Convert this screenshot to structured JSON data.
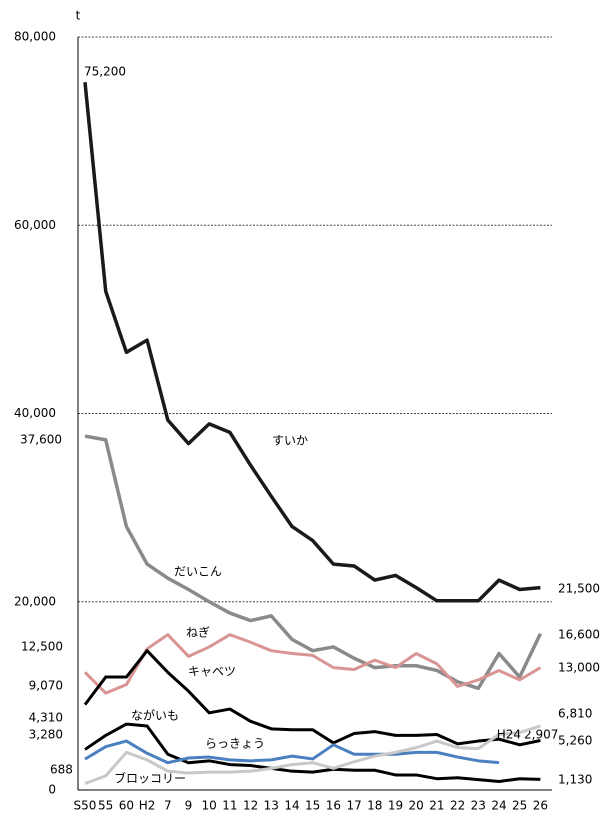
{
  "chart_data": {
    "type": "line",
    "y_label": "t",
    "categories": [
      "S50",
      "55",
      "60",
      "H2",
      "7",
      "9",
      "10",
      "11",
      "12",
      "13",
      "14",
      "15",
      "16",
      "17",
      "18",
      "19",
      "20",
      "21",
      "22",
      "23",
      "24",
      "25",
      "26"
    ],
    "ylim": [
      0,
      80000
    ],
    "yticks": [
      0,
      {
        "value": 20000,
        "label": "20,000"
      },
      {
        "value": 40000,
        "label": "40,000"
      },
      {
        "value": 60000,
        "label": "60,000"
      },
      {
        "value": 80000,
        "label": "80,000"
      }
    ],
    "grid": true,
    "annotations": [
      "H24"
    ],
    "series": [
      {
        "name": "すいか",
        "color": "#1a1a1a",
        "values": [
          75200,
          53000,
          46500,
          47800,
          39300,
          36800,
          38900,
          38000,
          34500,
          31200,
          28000,
          26500,
          24000,
          23800,
          22300,
          22800,
          21500,
          20100,
          20100,
          20100,
          22300,
          21300,
          21500
        ],
        "value_labels": [
          "75,200",
          null,
          null,
          null,
          null,
          null,
          null,
          null,
          null,
          null,
          null,
          null,
          null,
          null,
          null,
          null,
          null,
          null,
          null,
          null,
          null,
          null,
          "21,500"
        ]
      },
      {
        "name": "だいこん",
        "color": "#8a8a8a",
        "values": [
          37600,
          37200,
          28000,
          24000,
          22500,
          21300,
          20000,
          18800,
          18000,
          18500,
          16000,
          14800,
          15200,
          14000,
          13000,
          13200,
          13200,
          12700,
          11500,
          10800,
          14500,
          12000,
          16600
        ],
        "value_labels": [
          "37,600",
          null,
          null,
          null,
          null,
          null,
          null,
          null,
          null,
          null,
          null,
          null,
          null,
          null,
          null,
          null,
          null,
          null,
          null,
          null,
          null,
          null,
          "16,600"
        ]
      },
      {
        "name": "ねぎ",
        "color": "#d99494",
        "values": [
          12500,
          10300,
          11200,
          15000,
          16500,
          14200,
          15200,
          16500,
          15700,
          14800,
          14500,
          14300,
          13000,
          12800,
          13800,
          13000,
          14500,
          13400,
          11000,
          11700,
          12700,
          11700,
          13000
        ],
        "value_labels": [
          "12,500",
          null,
          null,
          null,
          null,
          null,
          null,
          null,
          null,
          null,
          null,
          null,
          null,
          null,
          null,
          null,
          null,
          null,
          null,
          null,
          null,
          null,
          "13,000"
        ]
      },
      {
        "name": "キャベツ",
        "color": "#000000",
        "values": [
          9070,
          12000,
          12000,
          14800,
          12500,
          10500,
          8200,
          8600,
          7300,
          6500,
          6400,
          6400,
          5000,
          6000,
          6200,
          5800,
          5800,
          5900,
          4900,
          5200,
          5400,
          4800,
          5260
        ],
        "value_labels": [
          "9,070",
          null,
          null,
          null,
          null,
          null,
          null,
          null,
          null,
          null,
          null,
          null,
          null,
          null,
          null,
          null,
          null,
          null,
          null,
          null,
          null,
          null,
          "5,260"
        ]
      },
      {
        "name": "ながいも",
        "color": "#000000",
        "values": [
          4310,
          5800,
          7000,
          6800,
          3800,
          2900,
          3100,
          2700,
          2600,
          2300,
          2000,
          1900,
          2200,
          2100,
          2100,
          1600,
          1600,
          1200,
          1300,
          1100,
          900,
          1200,
          1130
        ],
        "value_labels": [
          "4,310",
          null,
          null,
          null,
          null,
          null,
          null,
          null,
          null,
          null,
          null,
          null,
          null,
          null,
          null,
          null,
          null,
          null,
          null,
          null,
          null,
          null,
          "1,130"
        ]
      },
      {
        "name": "らっきょう",
        "color": "#4a7fc0",
        "values": [
          3280,
          4600,
          5200,
          3900,
          2900,
          3400,
          3500,
          3200,
          3100,
          3200,
          3600,
          3300,
          4800,
          3800,
          3800,
          3800,
          4000,
          4000,
          3500,
          3100,
          2907,
          null,
          null
        ],
        "value_labels": [
          "3,280",
          null,
          null,
          null,
          null,
          null,
          null,
          null,
          null,
          null,
          null,
          null,
          null,
          null,
          null,
          null,
          null,
          null,
          null,
          null,
          "2,907",
          null,
          null
        ]
      },
      {
        "name": "ブロッコリー",
        "color": "#c8c8c8",
        "values": [
          688,
          1500,
          4000,
          3200,
          2000,
          1800,
          1900,
          1900,
          2000,
          2300,
          2700,
          2900,
          2300,
          3000,
          3600,
          4000,
          4500,
          5200,
          4500,
          4400,
          5900,
          6100,
          6810
        ],
        "value_labels": [
          "688",
          null,
          null,
          null,
          null,
          null,
          null,
          null,
          null,
          null,
          null,
          null,
          null,
          null,
          null,
          null,
          null,
          null,
          null,
          null,
          null,
          null,
          "6,810"
        ]
      }
    ]
  }
}
